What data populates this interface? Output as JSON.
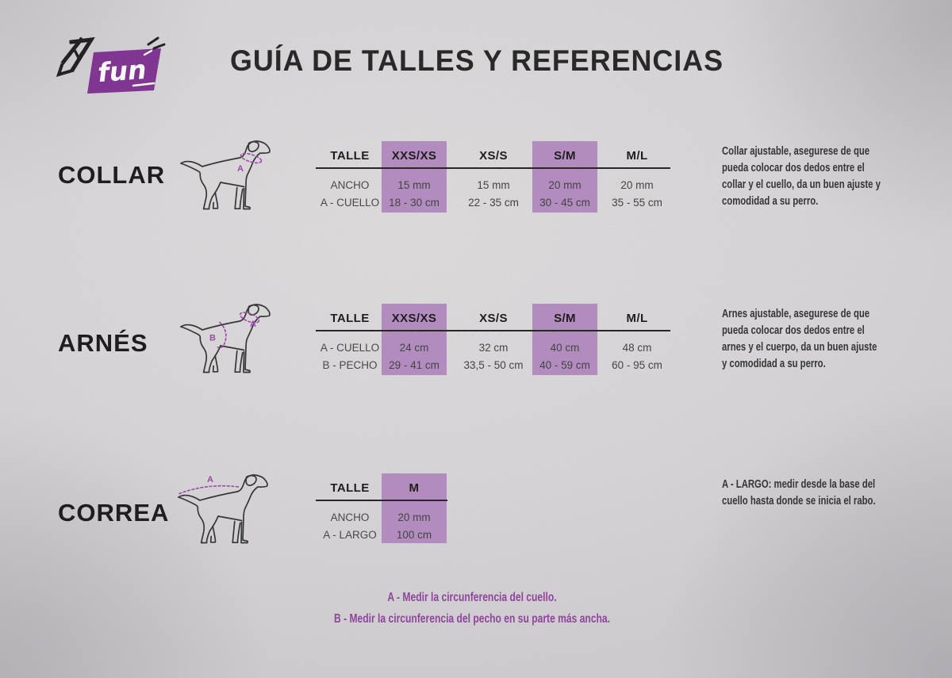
{
  "header": {
    "brand": "fun",
    "title": "GUÍA DE TALLES Y REFERENCIAS"
  },
  "sections": [
    {
      "id": "collar",
      "label": "COLLAR",
      "diagram": {
        "labels": [
          "A"
        ]
      },
      "table": {
        "header": [
          "TALLE",
          "XXS/XS",
          "XS/S",
          "S/M",
          "M/L"
        ],
        "rows": [
          {
            "label": "ANCHO",
            "values": [
              "15 mm",
              "15 mm",
              "20 mm",
              "20 mm"
            ]
          },
          {
            "label": "A - CUELLO",
            "values": [
              "18 - 30 cm",
              "22 - 35 cm",
              "30 - 45 cm",
              "35 - 55 cm"
            ]
          }
        ],
        "highlighted_columns": [
          0,
          2
        ]
      },
      "description": [
        "Collar ajustable, asegurese de que",
        "pueda colocar dos dedos entre el",
        "collar y el cuello, da un buen ajuste y",
        "comodidad a su perro."
      ]
    },
    {
      "id": "arnes",
      "label": "ARNÉS",
      "diagram": {
        "labels": [
          "A",
          "B"
        ]
      },
      "table": {
        "header": [
          "TALLE",
          "XXS/XS",
          "XS/S",
          "S/M",
          "M/L"
        ],
        "rows": [
          {
            "label": "A - CUELLO",
            "values": [
              "24 cm",
              "32 cm",
              "40 cm",
              "48 cm"
            ]
          },
          {
            "label": "B - PECHO",
            "values": [
              "29 - 41 cm",
              "33,5 - 50 cm",
              "40 - 59 cm",
              "60 - 95 cm"
            ]
          }
        ],
        "highlighted_columns": [
          0,
          2
        ]
      },
      "description": [
        "Arnes ajustable, asegurese de que",
        "pueda colocar dos dedos entre el",
        "arnes y el cuerpo, da un buen ajuste",
        "y comodidad a su perro."
      ]
    },
    {
      "id": "correa",
      "label": "CORREA",
      "diagram": {
        "labels": [
          "A"
        ]
      },
      "table": {
        "header": [
          "TALLE",
          "M"
        ],
        "rows": [
          {
            "label": "ANCHO",
            "values": [
              "20 mm"
            ]
          },
          {
            "label": "A - LARGO",
            "values": [
              "100 cm"
            ]
          }
        ],
        "highlighted_columns": [
          0
        ]
      },
      "description": [
        "A - LARGO: medir desde la base del",
        "cuello hasta donde se inicia el rabo."
      ]
    }
  ],
  "footer": {
    "notes": [
      "A - Medir la circunferencia del cuello.",
      "B - Medir la circunferencia del pecho en su parte más ancha."
    ]
  },
  "colors": {
    "highlight": "#b289bf",
    "accent_purple": "#8d3a9c",
    "logo_purple": "#7c2b8f",
    "measure_purple": "#9b3fa8",
    "ink": "#1d1d1b"
  }
}
